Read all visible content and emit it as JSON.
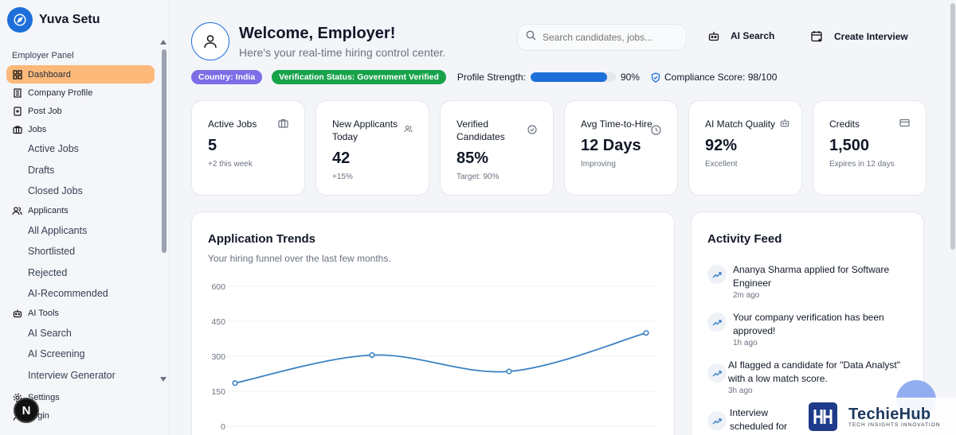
{
  "brand": {
    "name": "Yuva Setu"
  },
  "sidebar": {
    "section_label": "Employer Panel",
    "items": [
      {
        "label": "Dashboard",
        "icon": "grid-icon",
        "active": true
      },
      {
        "label": "Company Profile",
        "icon": "building-icon"
      },
      {
        "label": "Post Job",
        "icon": "plus-file-icon"
      },
      {
        "label": "Jobs",
        "icon": "briefcase-icon"
      },
      {
        "label": "Applicants",
        "icon": "users-icon"
      },
      {
        "label": "AI Tools",
        "icon": "bot-icon"
      },
      {
        "label": "Settings",
        "icon": "gear-icon"
      },
      {
        "label": "Login",
        "icon": "user-icon"
      }
    ],
    "jobs_sub": [
      "Active Jobs",
      "Drafts",
      "Closed Jobs"
    ],
    "applicants_sub": [
      "All Applicants",
      "Shortlisted",
      "Rejected",
      "AI-Recommended"
    ],
    "ai_sub": [
      "AI Search",
      "AI Screening",
      "Interview Generator"
    ],
    "badge_letter": "N"
  },
  "header": {
    "title": "Welcome, Employer!",
    "subtitle": "Here's your real-time hiring control center.",
    "search_placeholder": "Search candidates, jobs...",
    "ai_search_label": "AI Search",
    "create_interview_label": "Create Interview"
  },
  "status": {
    "country": "Country: India",
    "verification": "Verification Status: Government Verified",
    "profile_strength_label": "Profile Strength:",
    "profile_strength_value": "90%",
    "profile_strength_fraction": 0.9,
    "compliance": "Compliance Score: 98/100"
  },
  "cards": [
    {
      "label": "Active Jobs",
      "value": "5",
      "sub": "+2 this week",
      "icon": "briefcase-icon"
    },
    {
      "label": "New Applicants Today",
      "value": "42",
      "sub": "+15%",
      "icon": "users-icon"
    },
    {
      "label": "Verified Candidates",
      "value": "85%",
      "sub": "Target: 90%",
      "icon": "check-circle-icon"
    },
    {
      "label": "Avg Time-to-Hire",
      "value": "12 Days",
      "sub": "Improving",
      "icon": "clock-icon"
    },
    {
      "label": "AI Match Quality",
      "value": "92%",
      "sub": "Excellent",
      "icon": "bot-icon"
    },
    {
      "label": "Credits",
      "value": "1,500",
      "sub": "Expires in 12 days",
      "icon": "card-icon"
    }
  ],
  "trends": {
    "title": "Application Trends",
    "description": "Your hiring funnel over the last few months."
  },
  "chart_data": {
    "type": "line",
    "title": "Application Trends",
    "ylim": [
      0,
      600
    ],
    "yticks": [
      "600",
      "450",
      "300",
      "150",
      "0"
    ],
    "yticks_values": [
      600,
      450,
      300,
      150,
      0
    ],
    "x": [
      1,
      2,
      3,
      4
    ],
    "series": [
      {
        "values": [
          185,
          305,
          235,
          400
        ],
        "color": "#3b82c4"
      }
    ],
    "grid": true
  },
  "feed": {
    "title": "Activity Feed",
    "items": [
      {
        "text": "Ananya Sharma applied for Software Engineer",
        "time": "2m ago"
      },
      {
        "text": "Your company verification has been approved!",
        "time": "1h ago"
      },
      {
        "text": "AI flagged a candidate for \"Data Analyst\" with a low match score.",
        "time": "3h ago"
      },
      {
        "text": "Interview scheduled for tomorrow.",
        "time": ""
      }
    ]
  },
  "watermark": {
    "name": "TechieHub",
    "tagline": "TECH INSIGHTS INNOVATION"
  }
}
